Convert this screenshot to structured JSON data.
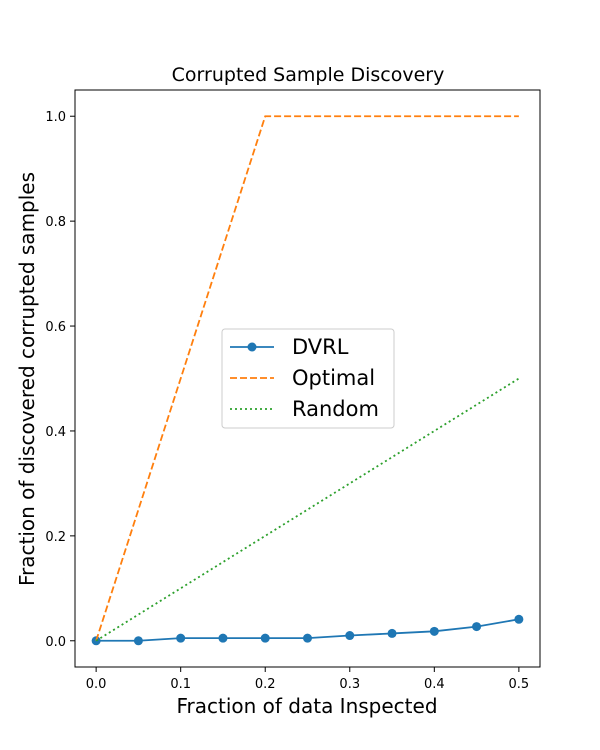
{
  "chart_data": {
    "type": "line",
    "title": "Corrupted Sample Discovery",
    "xlabel": "Fraction of data Inspected",
    "ylabel": "Fraction of discovered corrupted samples",
    "xlim": [
      -0.025,
      0.525
    ],
    "ylim": [
      -0.05,
      1.05
    ],
    "xticks": [
      "0.0",
      "0.1",
      "0.2",
      "0.3",
      "0.4",
      "0.5"
    ],
    "yticks": [
      "0.0",
      "0.2",
      "0.4",
      "0.6",
      "0.8",
      "1.0"
    ],
    "grid": false,
    "legend_position": "center",
    "series": [
      {
        "name": "DVRL",
        "color": "#1f77b4",
        "style": "solid-marker",
        "x": [
          0.0,
          0.05,
          0.1,
          0.15,
          0.2,
          0.25,
          0.3,
          0.35,
          0.4,
          0.45,
          0.5
        ],
        "y": [
          0.0,
          0.0,
          0.005,
          0.005,
          0.005,
          0.005,
          0.01,
          0.014,
          0.018,
          0.027,
          0.041
        ]
      },
      {
        "name": "Optimal",
        "color": "#ff7f0e",
        "style": "dashed",
        "x": [
          0.0,
          0.2,
          0.5
        ],
        "y": [
          0.0,
          1.0,
          1.0
        ]
      },
      {
        "name": "Random",
        "color": "#2ca02c",
        "style": "dotted",
        "x": [
          0.0,
          0.5
        ],
        "y": [
          0.0,
          0.5
        ]
      }
    ]
  }
}
